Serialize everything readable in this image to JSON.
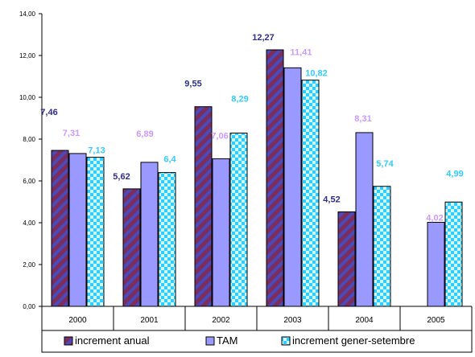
{
  "chart_data": {
    "type": "bar",
    "title": "",
    "xlabel": "",
    "ylabel": "",
    "ylim": [
      0,
      14
    ],
    "y_ticks": [
      "0,00",
      "2,00",
      "4,00",
      "6,00",
      "8,00",
      "10,00",
      "12,00",
      "14,00"
    ],
    "grid": false,
    "legend_position": "bottom",
    "categories": [
      "2000",
      "2001",
      "2002",
      "2003",
      "2004",
      "2005"
    ],
    "series": [
      {
        "name": "increment anual",
        "values": [
          7.46,
          5.62,
          9.55,
          12.27,
          4.52,
          null
        ],
        "labels": [
          "7,46",
          "5,62",
          "9,55",
          "12,27",
          "4,52",
          ""
        ],
        "fill": "#7b2d5e",
        "stripe": "#4a4ab8",
        "label_color": "#2e2e8c"
      },
      {
        "name": "TAM",
        "values": [
          7.31,
          6.89,
          7.06,
          11.41,
          8.31,
          4.02
        ],
        "labels": [
          "7,31",
          "6,89",
          "7,06",
          "11,41",
          "8,31",
          "4,02"
        ],
        "fill": "#9999ff",
        "label_color": "#cc99ff"
      },
      {
        "name": "increment gener-setembre",
        "values": [
          7.13,
          6.4,
          8.29,
          10.82,
          5.74,
          4.99
        ],
        "labels": [
          "7,13",
          "6,4",
          "8,29",
          "10,82",
          "5,74",
          "4,99"
        ],
        "fill": "#ccffff",
        "check": "#33ccff",
        "label_color": "#33ccff"
      }
    ]
  }
}
